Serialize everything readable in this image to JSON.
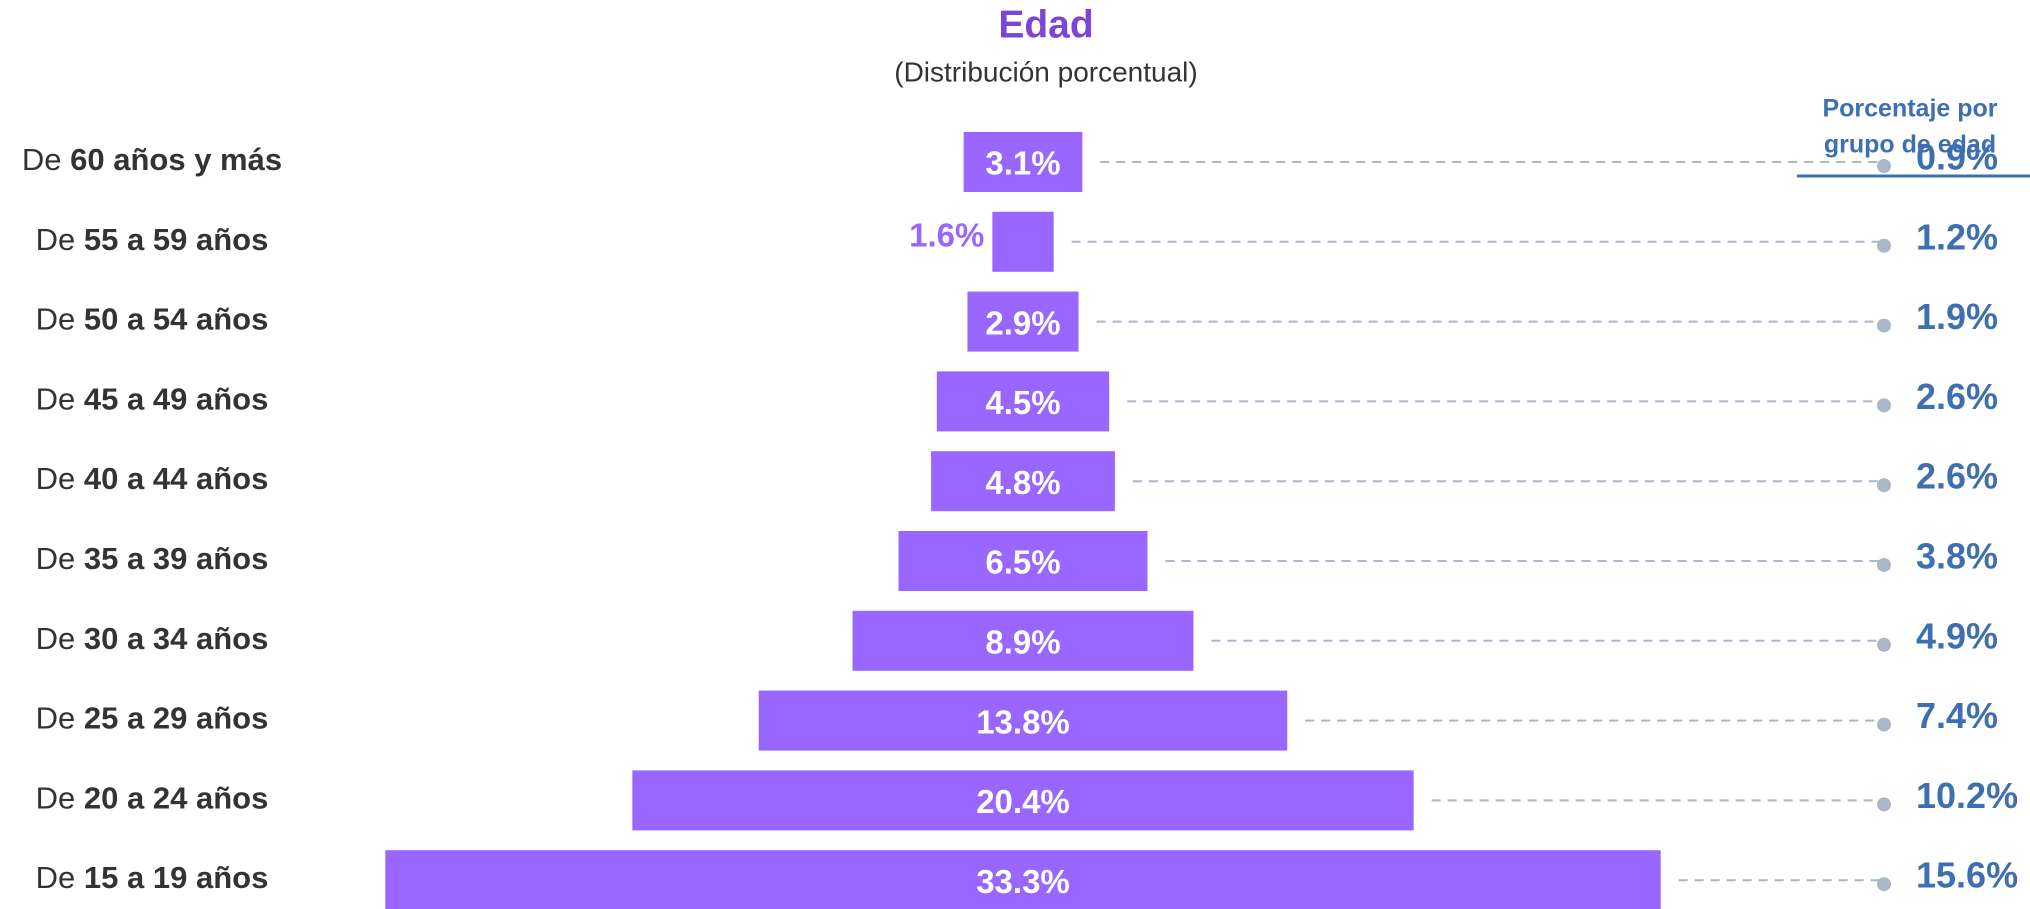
{
  "chart_data": {
    "type": "bar",
    "title": "Edad",
    "subtitle": "(Distribución porcentual)",
    "category_prefix": "De",
    "categories": [
      "60 años y más",
      "55 a 59 años",
      "50 a 54 años",
      "45 a 49 años",
      "40 a 44 años",
      "35 a 39 años",
      "30 a 34 años",
      "25 a 29 años",
      "20 a 24 años",
      "15 a 19 años"
    ],
    "values": [
      3.1,
      1.6,
      2.9,
      4.5,
      4.8,
      6.5,
      8.9,
      13.8,
      20.4,
      33.3
    ],
    "value_labels": [
      "3.1%",
      "1.6%",
      "2.9%",
      "4.5%",
      "4.8%",
      "6.5%",
      "8.9%",
      "13.8%",
      "20.4%",
      "33.3%"
    ],
    "color": "#9966ff",
    "share_header": [
      "Porcentaje por",
      "grupo de edad"
    ],
    "share_values": [
      0.9,
      1.2,
      1.9,
      2.6,
      2.6,
      3.8,
      4.9,
      7.4,
      10.2,
      15.6
    ],
    "share_labels": [
      "0.9%",
      "1.2%",
      "1.9%",
      "2.6%",
      "2.6%",
      "3.8%",
      "4.9%",
      "7.4%",
      "10.2%",
      "15.6%"
    ],
    "share_color": "#3e6fb0"
  }
}
